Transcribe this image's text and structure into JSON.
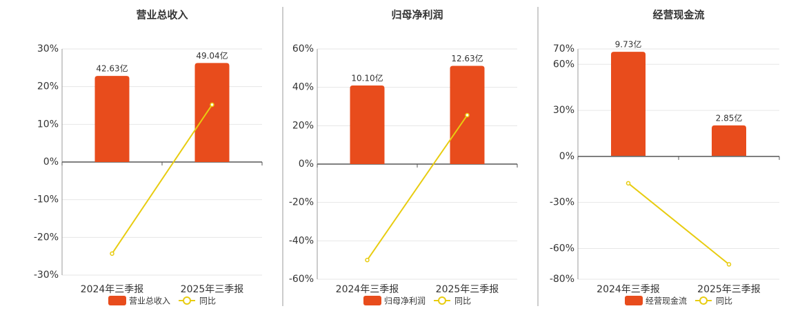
{
  "chart_data": [
    {
      "type": "bar",
      "title": "营业总收入",
      "categories": [
        "2024年三季报",
        "2025年三季报"
      ],
      "series": [
        {
          "name": "营业总收入",
          "color": "#e84c1c",
          "axis": "y2",
          "values": [
            42.63,
            49.04
          ],
          "value_labels": [
            "42.63亿",
            "49.04亿"
          ]
        },
        {
          "name": "同比",
          "color": "#e8cc10",
          "type": "line",
          "values": [
            -24.3,
            15.2
          ]
        }
      ],
      "ylim": [
        -30,
        30
      ],
      "yticks": [
        {
          "value": 30,
          "label": "30%"
        },
        {
          "value": 20,
          "label": "20%"
        },
        {
          "value": 10,
          "label": "10%"
        },
        {
          "value": 0,
          "label": "0%"
        },
        {
          "value": -10,
          "label": "-10%"
        },
        {
          "value": -20,
          "label": "-20%"
        },
        {
          "value": -30,
          "label": "-30%"
        }
      ],
      "y2lim": [
        -56,
        56
      ],
      "grid": true
    },
    {
      "type": "bar",
      "title": "归母净利润",
      "categories": [
        "2024年三季报",
        "2025年三季报"
      ],
      "series": [
        {
          "name": "归母净利润",
          "color": "#e84c1c",
          "axis": "y2",
          "values": [
            10.1,
            12.63
          ],
          "value_labels": [
            "10.10亿",
            "12.63亿"
          ]
        },
        {
          "name": "同比",
          "color": "#e8cc10",
          "type": "line",
          "values": [
            -50,
            25.5
          ]
        }
      ],
      "ylim": [
        -60,
        60
      ],
      "yticks": [
        {
          "value": 60,
          "label": "60%"
        },
        {
          "value": 40,
          "label": "40%"
        },
        {
          "value": 20,
          "label": "20%"
        },
        {
          "value": 0,
          "label": "0%"
        },
        {
          "value": -20,
          "label": "-20%"
        },
        {
          "value": -40,
          "label": "-40%"
        },
        {
          "value": -60,
          "label": "-60%"
        }
      ],
      "y2lim": [
        -14.8,
        14.8
      ],
      "grid": true
    },
    {
      "type": "bar",
      "title": "经营现金流",
      "categories": [
        "2024年三季报",
        "2025年三季报"
      ],
      "series": [
        {
          "name": "经营现金流",
          "color": "#e84c1c",
          "axis": "y2",
          "values": [
            9.73,
            2.85
          ],
          "value_labels": [
            "9.73亿",
            "2.85亿"
          ]
        },
        {
          "name": "同比",
          "color": "#e8cc10",
          "type": "line",
          "values": [
            -17.5,
            -70.3
          ]
        }
      ],
      "ylim": [
        -80,
        70
      ],
      "yticks": [
        {
          "value": 70,
          "label": "70%"
        },
        {
          "value": 60,
          "label": "60%"
        },
        {
          "value": 30,
          "label": "30%"
        },
        {
          "value": 0,
          "label": "0%"
        },
        {
          "value": -30,
          "label": "-30%"
        },
        {
          "value": -60,
          "label": "-60%"
        },
        {
          "value": -80,
          "label": "-80%"
        }
      ],
      "y2lim": [
        -11.55,
        10
      ],
      "grid": true
    }
  ]
}
